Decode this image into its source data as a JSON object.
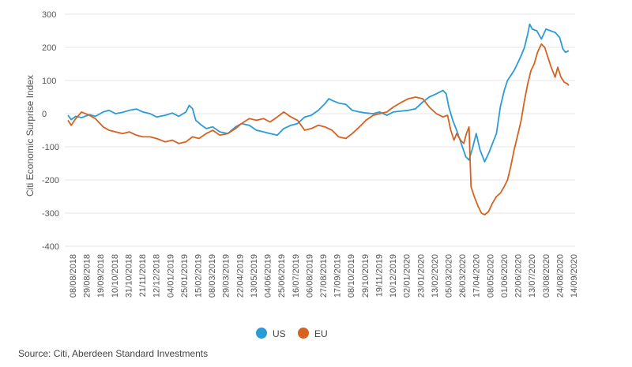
{
  "chart_data": {
    "type": "line",
    "ylabel": "Citi Economic Surprise Index",
    "ylim": [
      -400,
      300
    ],
    "yticks": [
      300,
      200,
      100,
      0,
      -100,
      -200,
      -300,
      -400
    ],
    "grid": "horizontal",
    "legend_position": "bottom-center",
    "x_start": "2018-08-08",
    "x_end": "2020-09-14",
    "x_tick_labels": [
      "08/08/2018",
      "29/08/2018",
      "19/09/2018",
      "10/10/2018",
      "31/10/2018",
      "21/11/2018",
      "12/12/2018",
      "04/01/2019",
      "25/01/2019",
      "15/02/2019",
      "08/03/2019",
      "29/03/2019",
      "22/04/2019",
      "13/05/2019",
      "04/06/2019",
      "25/06/2019",
      "16/07/2019",
      "06/08/2019",
      "27/08/2019",
      "17/09/2019",
      "08/10/2019",
      "29/10/2019",
      "19/11/2019",
      "10/12/2019",
      "02/01/2020",
      "23/01/2020",
      "13/02/2020",
      "05/03/2020",
      "26/03/2020",
      "17/04/2020",
      "08/05/2020",
      "01/06/2020",
      "22/06/2020",
      "13/07/2020",
      "03/08/2020",
      "24/08/2020",
      "14/09/2020"
    ],
    "series": [
      {
        "name": "US",
        "color": "#2b9bd8",
        "points": [
          [
            "2018-08-08",
            -5
          ],
          [
            "2018-08-13",
            -18
          ],
          [
            "2018-08-20",
            -8
          ],
          [
            "2018-08-29",
            -12
          ],
          [
            "2018-09-10",
            -3
          ],
          [
            "2018-09-19",
            -8
          ],
          [
            "2018-10-01",
            5
          ],
          [
            "2018-10-10",
            10
          ],
          [
            "2018-10-20",
            0
          ],
          [
            "2018-10-31",
            4
          ],
          [
            "2018-11-10",
            10
          ],
          [
            "2018-11-21",
            14
          ],
          [
            "2018-12-01",
            5
          ],
          [
            "2018-12-12",
            0
          ],
          [
            "2018-12-22",
            -10
          ],
          [
            "2019-01-04",
            -5
          ],
          [
            "2019-01-15",
            2
          ],
          [
            "2019-01-25",
            -8
          ],
          [
            "2019-02-05",
            5
          ],
          [
            "2019-02-10",
            25
          ],
          [
            "2019-02-15",
            15
          ],
          [
            "2019-02-20",
            -20
          ],
          [
            "2019-03-01",
            -35
          ],
          [
            "2019-03-08",
            -45
          ],
          [
            "2019-03-18",
            -40
          ],
          [
            "2019-03-29",
            -55
          ],
          [
            "2019-04-10",
            -60
          ],
          [
            "2019-04-22",
            -40
          ],
          [
            "2019-05-01",
            -30
          ],
          [
            "2019-05-13",
            -35
          ],
          [
            "2019-05-24",
            -50
          ],
          [
            "2019-06-04",
            -55
          ],
          [
            "2019-06-14",
            -60
          ],
          [
            "2019-06-25",
            -65
          ],
          [
            "2019-07-05",
            -45
          ],
          [
            "2019-07-16",
            -35
          ],
          [
            "2019-07-26",
            -30
          ],
          [
            "2019-08-06",
            -10
          ],
          [
            "2019-08-16",
            -5
          ],
          [
            "2019-08-27",
            10
          ],
          [
            "2019-09-06",
            30
          ],
          [
            "2019-09-12",
            45
          ],
          [
            "2019-09-17",
            40
          ],
          [
            "2019-09-27",
            32
          ],
          [
            "2019-10-08",
            28
          ],
          [
            "2019-10-18",
            10
          ],
          [
            "2019-10-29",
            5
          ],
          [
            "2019-11-08",
            2
          ],
          [
            "2019-11-19",
            0
          ],
          [
            "2019-11-29",
            5
          ],
          [
            "2019-12-10",
            -5
          ],
          [
            "2019-12-20",
            5
          ],
          [
            "2020-01-02",
            8
          ],
          [
            "2020-01-12",
            10
          ],
          [
            "2020-01-23",
            15
          ],
          [
            "2020-02-03",
            35
          ],
          [
            "2020-02-13",
            50
          ],
          [
            "2020-02-24",
            60
          ],
          [
            "2020-03-05",
            70
          ],
          [
            "2020-03-10",
            60
          ],
          [
            "2020-03-14",
            20
          ],
          [
            "2020-03-20",
            -20
          ],
          [
            "2020-03-26",
            -50
          ],
          [
            "2020-04-02",
            -90
          ],
          [
            "2020-04-09",
            -130
          ],
          [
            "2020-04-14",
            -140
          ],
          [
            "2020-04-20",
            -100
          ],
          [
            "2020-04-25",
            -60
          ],
          [
            "2020-05-01",
            -110
          ],
          [
            "2020-05-08",
            -145
          ],
          [
            "2020-05-14",
            -120
          ],
          [
            "2020-05-20",
            -90
          ],
          [
            "2020-05-26",
            -60
          ],
          [
            "2020-06-01",
            20
          ],
          [
            "2020-06-07",
            70
          ],
          [
            "2020-06-12",
            100
          ],
          [
            "2020-06-17",
            115
          ],
          [
            "2020-06-22",
            130
          ],
          [
            "2020-06-27",
            150
          ],
          [
            "2020-07-03",
            175
          ],
          [
            "2020-07-08",
            200
          ],
          [
            "2020-07-13",
            240
          ],
          [
            "2020-07-16",
            270
          ],
          [
            "2020-07-20",
            255
          ],
          [
            "2020-07-27",
            250
          ],
          [
            "2020-08-03",
            225
          ],
          [
            "2020-08-10",
            255
          ],
          [
            "2020-08-17",
            250
          ],
          [
            "2020-08-24",
            245
          ],
          [
            "2020-08-31",
            230
          ],
          [
            "2020-09-05",
            195
          ],
          [
            "2020-09-09",
            185
          ],
          [
            "2020-09-14",
            190
          ]
        ]
      },
      {
        "name": "EU",
        "color": "#d66120",
        "points": [
          [
            "2018-08-08",
            -20
          ],
          [
            "2018-08-13",
            -35
          ],
          [
            "2018-08-20",
            -15
          ],
          [
            "2018-08-29",
            5
          ],
          [
            "2018-09-10",
            -5
          ],
          [
            "2018-09-19",
            -15
          ],
          [
            "2018-10-01",
            -40
          ],
          [
            "2018-10-10",
            -50
          ],
          [
            "2018-10-20",
            -55
          ],
          [
            "2018-10-31",
            -60
          ],
          [
            "2018-11-10",
            -55
          ],
          [
            "2018-11-21",
            -65
          ],
          [
            "2018-12-01",
            -70
          ],
          [
            "2018-12-12",
            -70
          ],
          [
            "2018-12-22",
            -75
          ],
          [
            "2019-01-04",
            -85
          ],
          [
            "2019-01-15",
            -80
          ],
          [
            "2019-01-25",
            -90
          ],
          [
            "2019-02-05",
            -85
          ],
          [
            "2019-02-15",
            -70
          ],
          [
            "2019-02-25",
            -75
          ],
          [
            "2019-03-08",
            -60
          ],
          [
            "2019-03-18",
            -50
          ],
          [
            "2019-03-29",
            -65
          ],
          [
            "2019-04-10",
            -60
          ],
          [
            "2019-04-22",
            -45
          ],
          [
            "2019-05-01",
            -30
          ],
          [
            "2019-05-13",
            -15
          ],
          [
            "2019-05-24",
            -20
          ],
          [
            "2019-06-04",
            -15
          ],
          [
            "2019-06-14",
            -25
          ],
          [
            "2019-06-25",
            -10
          ],
          [
            "2019-07-05",
            5
          ],
          [
            "2019-07-16",
            -10
          ],
          [
            "2019-07-26",
            -20
          ],
          [
            "2019-08-06",
            -50
          ],
          [
            "2019-08-16",
            -45
          ],
          [
            "2019-08-27",
            -35
          ],
          [
            "2019-09-06",
            -40
          ],
          [
            "2019-09-17",
            -50
          ],
          [
            "2019-09-27",
            -70
          ],
          [
            "2019-10-08",
            -75
          ],
          [
            "2019-10-18",
            -60
          ],
          [
            "2019-10-29",
            -40
          ],
          [
            "2019-11-08",
            -20
          ],
          [
            "2019-11-19",
            -5
          ],
          [
            "2019-11-29",
            0
          ],
          [
            "2019-12-10",
            5
          ],
          [
            "2019-12-20",
            20
          ],
          [
            "2020-01-02",
            35
          ],
          [
            "2020-01-12",
            45
          ],
          [
            "2020-01-23",
            50
          ],
          [
            "2020-02-03",
            45
          ],
          [
            "2020-02-13",
            20
          ],
          [
            "2020-02-24",
            0
          ],
          [
            "2020-03-05",
            -10
          ],
          [
            "2020-03-12",
            -5
          ],
          [
            "2020-03-17",
            -50
          ],
          [
            "2020-03-22",
            -80
          ],
          [
            "2020-03-26",
            -60
          ],
          [
            "2020-04-01",
            -80
          ],
          [
            "2020-04-06",
            -90
          ],
          [
            "2020-04-10",
            -60
          ],
          [
            "2020-04-14",
            -40
          ],
          [
            "2020-04-17",
            -220
          ],
          [
            "2020-04-22",
            -250
          ],
          [
            "2020-04-28",
            -280
          ],
          [
            "2020-05-03",
            -300
          ],
          [
            "2020-05-08",
            -305
          ],
          [
            "2020-05-14",
            -295
          ],
          [
            "2020-05-20",
            -270
          ],
          [
            "2020-05-26",
            -250
          ],
          [
            "2020-06-01",
            -240
          ],
          [
            "2020-06-07",
            -220
          ],
          [
            "2020-06-12",
            -200
          ],
          [
            "2020-06-17",
            -160
          ],
          [
            "2020-06-22",
            -110
          ],
          [
            "2020-06-27",
            -70
          ],
          [
            "2020-07-03",
            -20
          ],
          [
            "2020-07-08",
            40
          ],
          [
            "2020-07-13",
            90
          ],
          [
            "2020-07-18",
            130
          ],
          [
            "2020-07-23",
            150
          ],
          [
            "2020-07-28",
            185
          ],
          [
            "2020-08-03",
            210
          ],
          [
            "2020-08-08",
            200
          ],
          [
            "2020-08-13",
            170
          ],
          [
            "2020-08-18",
            140
          ],
          [
            "2020-08-24",
            110
          ],
          [
            "2020-08-28",
            140
          ],
          [
            "2020-09-02",
            110
          ],
          [
            "2020-09-07",
            95
          ],
          [
            "2020-09-12",
            90
          ],
          [
            "2020-09-14",
            85
          ]
        ]
      }
    ]
  },
  "source": "Source: Citi, Aberdeen Standard Investments"
}
